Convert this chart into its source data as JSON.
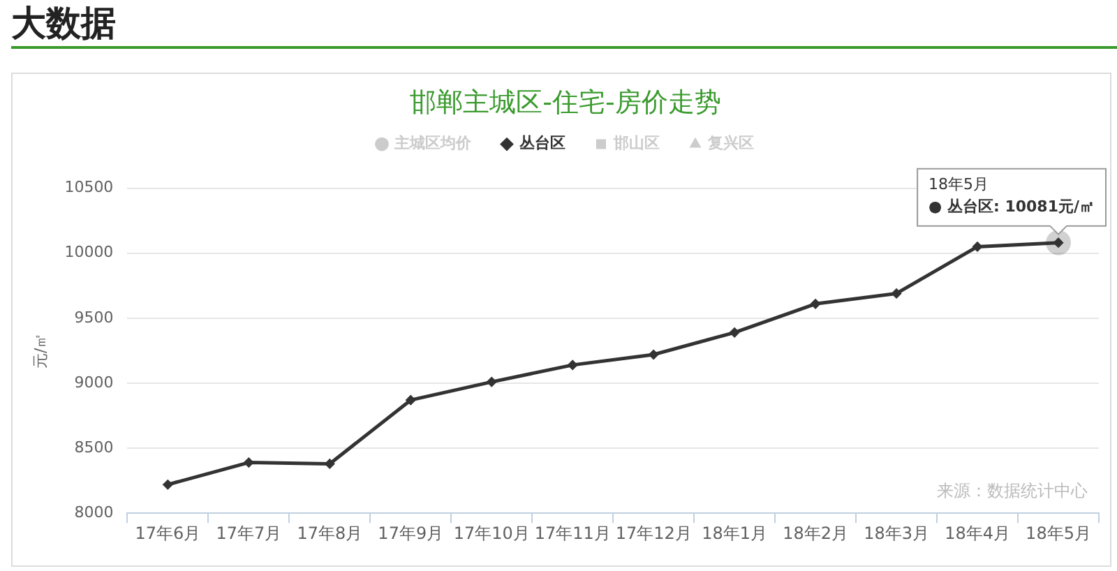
{
  "chart_data": {
    "type": "line",
    "title": "邯郸主城区-住宅-房价走势",
    "ylabel": "元/㎡",
    "categories": [
      "17年6月",
      "17年7月",
      "17年8月",
      "17年9月",
      "17年10月",
      "17年11月",
      "17年12月",
      "18年1月",
      "18年2月",
      "18年3月",
      "18年4月",
      "18年5月"
    ],
    "series": [
      {
        "name": "主城区均价",
        "color": "#cccccc",
        "marker": "circle",
        "values": [
          null,
          null,
          null,
          null,
          null,
          null,
          null,
          null,
          null,
          null,
          null,
          null
        ]
      },
      {
        "name": "丛台区",
        "color": "#333333",
        "marker": "diamond",
        "values": [
          8220,
          8390,
          8380,
          8870,
          9010,
          9140,
          9220,
          9390,
          9610,
          9690,
          10050,
          10081
        ]
      },
      {
        "name": "邯山区",
        "color": "#cccccc",
        "marker": "square",
        "values": [
          null,
          null,
          null,
          null,
          null,
          null,
          null,
          null,
          null,
          null,
          null,
          null
        ]
      },
      {
        "name": "复兴区",
        "color": "#cccccc",
        "marker": "triangle",
        "values": [
          null,
          null,
          null,
          null,
          null,
          null,
          null,
          null,
          null,
          null,
          null,
          null
        ]
      }
    ],
    "ylim": [
      8000,
      10500
    ],
    "yticks": [
      8000,
      8500,
      9000,
      9500,
      10000,
      10500
    ],
    "grid": "y",
    "legend": "top",
    "line_style": "solid",
    "annotations": [
      "大数据",
      {
        "text": "18年5月\n● 丛台区: 10081元/㎡",
        "x": "18年5月",
        "y": 10081
      },
      "来源：数据统计中心"
    ]
  }
}
